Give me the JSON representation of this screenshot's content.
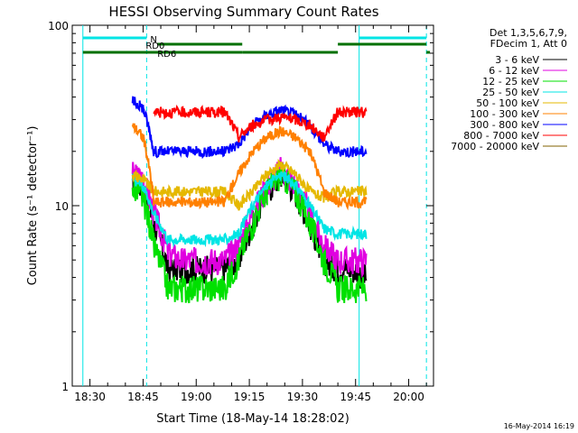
{
  "chart_data": {
    "type": "line",
    "title": "HESSI Observing Summary Count Rates",
    "xlabel": "Start Time (18-May-14 18:28:02)",
    "ylabel": "Count Rate (s⁻¹ detector⁻¹)",
    "ylog": true,
    "ylim": [
      1,
      100
    ],
    "xlim": [
      "18:25",
      "20:07"
    ],
    "x_tick_labels": [
      "18:30",
      "18:45",
      "19:00",
      "19:15",
      "19:30",
      "19:45",
      "20:00"
    ],
    "y_tick_labels": [
      "1",
      "10",
      "100"
    ],
    "legend_header": [
      "Det 1,3,5,6,7,9,",
      "FDecim 1, Att 0"
    ],
    "legend_position": "right-outside",
    "flags": [
      {
        "name": "N",
        "color": "#00e5e5",
        "segments": [
          [
            "18:28",
            "18:46"
          ],
          [
            "19:46",
            "20:05"
          ]
        ]
      },
      {
        "name": "RD0",
        "color": "#007000",
        "segments": [
          [
            "18:49",
            "19:13"
          ],
          [
            "19:40",
            "20:05"
          ]
        ]
      },
      {
        "name": "RD6",
        "color": "#007000",
        "segments": [
          [
            "18:28",
            "19:13"
          ],
          [
            "19:13",
            "19:40"
          ],
          [
            "20:05",
            "20:06"
          ]
        ]
      }
    ],
    "vertical_markers": [
      {
        "time": "18:28",
        "style": "solid"
      },
      {
        "time": "18:46",
        "style": "dashed"
      },
      {
        "time": "19:46",
        "style": "solid"
      },
      {
        "time": "20:05",
        "style": "dashed"
      }
    ],
    "x": [
      "18:42",
      "18:45",
      "18:48",
      "18:52",
      "18:56",
      "19:00",
      "19:04",
      "19:08",
      "19:12",
      "19:16",
      "19:20",
      "19:24",
      "19:28",
      "19:32",
      "19:36",
      "19:40",
      "19:44",
      "19:48"
    ],
    "series": [
      {
        "name": "3 - 6 keV",
        "color": "#000000",
        "values": [
          14,
          13,
          8,
          4.5,
          4.5,
          4.5,
          4.5,
          4.5,
          5,
          8,
          12,
          15,
          12,
          8,
          5,
          4.5,
          4.5,
          4
        ]
      },
      {
        "name": "6 - 12 keV",
        "color": "#e000e0",
        "values": [
          15,
          14,
          9,
          5.5,
          5,
          5,
          5,
          5,
          6,
          9,
          13,
          16,
          13,
          9,
          6,
          5,
          5,
          5
        ]
      },
      {
        "name": "12 - 25 keV",
        "color": "#00e000",
        "values": [
          13,
          11,
          6,
          3.5,
          3.5,
          3.5,
          3.5,
          3.5,
          5,
          8,
          12,
          15,
          12,
          8,
          5,
          3.5,
          3.5,
          3.5
        ]
      },
      {
        "name": "25 - 50 keV",
        "color": "#00e5e5",
        "values": [
          14,
          13,
          9,
          6.5,
          6.5,
          6.5,
          6.5,
          6.5,
          7,
          10,
          13,
          15,
          13,
          10,
          7.5,
          7,
          7,
          7
        ]
      },
      {
        "name": "50 - 100 keV",
        "color": "#e5b800",
        "values": [
          15,
          14,
          12,
          12,
          12,
          12,
          12,
          12,
          10,
          12,
          15,
          17,
          15,
          12,
          11,
          12,
          12,
          12
        ]
      },
      {
        "name": "100 - 300 keV",
        "color": "#ff8000",
        "values": [
          28,
          24,
          10.5,
          10.5,
          10.5,
          10.5,
          10.5,
          10.5,
          15,
          20,
          24,
          26,
          24,
          20,
          12,
          10.5,
          10.5,
          10.5
        ]
      },
      {
        "name": "300 - 800 keV",
        "color": "#0000ff",
        "values": [
          38,
          35,
          20,
          20,
          20,
          20,
          20,
          20,
          22,
          28,
          32,
          34,
          32,
          28,
          22,
          20,
          20,
          20
        ]
      },
      {
        "name": "800 - 7000 keV",
        "color": "#ff0000",
        "values": [
          null,
          null,
          33,
          33,
          33,
          33,
          33,
          33,
          24,
          28,
          30,
          31,
          30,
          28,
          24,
          33,
          33,
          33
        ]
      },
      {
        "name": "7000 - 20000 keV",
        "color": "#806000",
        "values": [
          null,
          null,
          null,
          null,
          null,
          null,
          null,
          null,
          null,
          null,
          null,
          null,
          null,
          null,
          null,
          null,
          null,
          null
        ]
      }
    ]
  },
  "footer": {
    "timestamp": "16-May-2014 16:19"
  }
}
